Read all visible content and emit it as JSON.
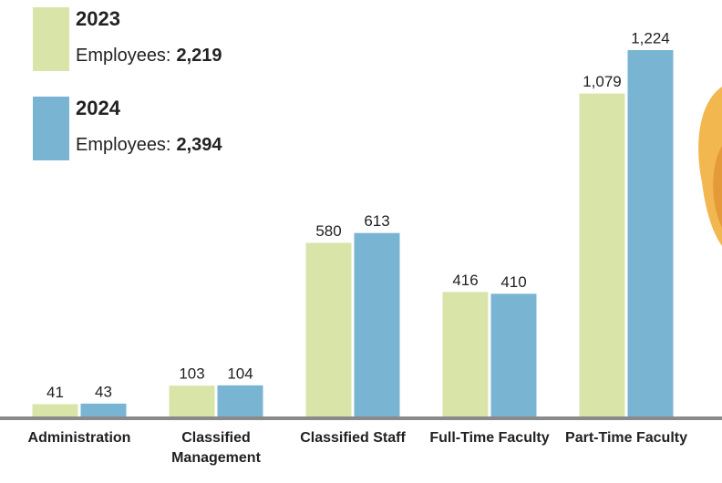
{
  "chart_data": {
    "type": "bar",
    "categories": [
      "Administration",
      "Classified Management",
      "Classified Staff",
      "Full-Time Faculty",
      "Part-Time Faculty"
    ],
    "total_prefix": "Employees:",
    "series": [
      {
        "name": "2023",
        "color": "#d9e4a8",
        "values": [
          41,
          103,
          580,
          416,
          1079
        ],
        "value_labels": [
          "41",
          "103",
          "580",
          "416",
          "1,079"
        ],
        "total": {
          "value": 2219,
          "label": "2,219"
        }
      },
      {
        "name": "2024",
        "color": "#7ab4d3",
        "values": [
          43,
          104,
          613,
          410,
          1224
        ],
        "value_labels": [
          "43",
          "104",
          "613",
          "410",
          "1,224"
        ],
        "total": {
          "value": 2394,
          "label": "2,394"
        }
      }
    ]
  }
}
